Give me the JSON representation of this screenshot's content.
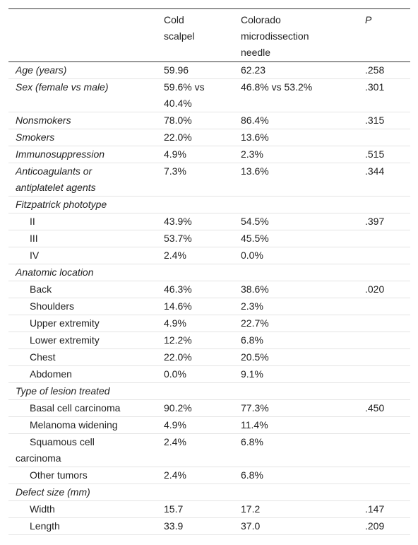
{
  "table": {
    "header": [
      "Cold scalpel",
      "Colorado microdissection needle",
      "P"
    ],
    "rows": [
      {
        "label": "Age (years)",
        "values": [
          "59.96",
          "62.23",
          ".258"
        ]
      },
      {
        "label": "Sex (female vs male)",
        "values": [
          "59.6% vs 40.4%",
          "46.8% vs 53.2%",
          ".301"
        ]
      },
      {
        "label": "Nonsmokers",
        "values": [
          "78.0%",
          "86.4%",
          ".315"
        ]
      },
      {
        "label": "Smokers",
        "values": [
          "22.0%",
          "13.6%",
          null
        ]
      },
      {
        "label": "Immunosuppression",
        "values": [
          "4.9%",
          "2.3%",
          ".515"
        ]
      },
      {
        "label": "Anticoagulants or antiplatelet agents",
        "values": [
          "7.3%",
          "13.6%",
          ".344"
        ]
      },
      {
        "label": "Fitzpatrick phototype",
        "rows": [
          {
            "label": "II",
            "values": [
              "43.9%",
              "54.5%",
              ".397"
            ]
          },
          {
            "label": "III",
            "values": [
              "53.7%",
              "45.5%",
              null
            ]
          },
          {
            "label": "IV",
            "values": [
              "2.4%",
              "0.0%",
              null
            ]
          }
        ]
      },
      {
        "label": "Anatomic location",
        "rows": [
          {
            "label": "Back",
            "values": [
              "46.3%",
              "38.6%",
              ".020"
            ]
          },
          {
            "label": "Shoulders",
            "values": [
              "14.6%",
              "2.3%",
              null
            ]
          },
          {
            "label": "Upper extremity",
            "values": [
              "4.9%",
              "22.7%",
              null
            ]
          },
          {
            "label": "Lower extremity",
            "values": [
              "12.2%",
              "6.8%",
              null
            ]
          },
          {
            "label": "Chest",
            "values": [
              "22.0%",
              "20.5%",
              null
            ]
          },
          {
            "label": "Abdomen",
            "values": [
              "0.0%",
              "9.1%",
              null
            ]
          }
        ]
      },
      {
        "label": "Type of lesion treated",
        "rows": [
          {
            "label": "Basal cell carcinoma",
            "values": [
              "90.2%",
              "77.3%",
              ".450"
            ]
          },
          {
            "label": "Melanoma widening",
            "values": [
              "4.9%",
              "11.4%",
              null
            ]
          },
          {
            "label": "Squamous cell carcinoma",
            "values": [
              "2.4%",
              "6.8%",
              null
            ]
          },
          {
            "label": "Other tumors",
            "values": [
              "2.4%",
              "6.8%",
              null
            ]
          }
        ]
      },
      {
        "label": "Defect size (mm)",
        "rows": [
          {
            "label": "Width",
            "values": [
              "15.7",
              "17.2",
              ".147"
            ]
          },
          {
            "label": "Length",
            "values": [
              "33.9",
              "37.0",
              ".209"
            ]
          }
        ]
      }
    ]
  }
}
